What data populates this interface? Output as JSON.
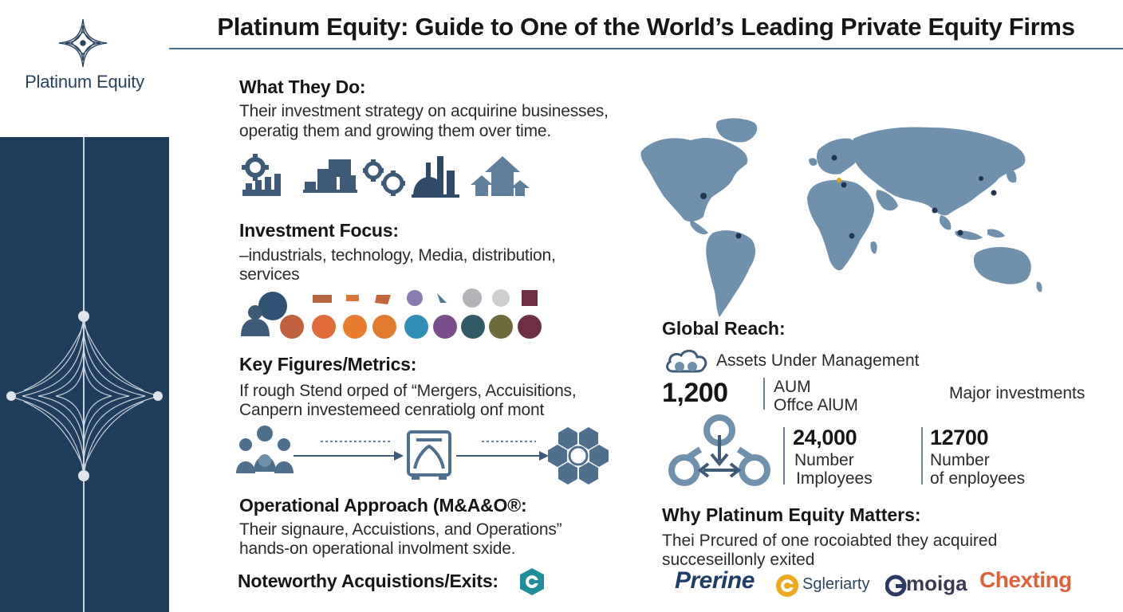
{
  "brand": {
    "name": "Platinum Equity"
  },
  "title": "Platinum Equity: Guide to One of the World’s Leading Private Equity Firms",
  "sections": {
    "what": {
      "heading": "What They Do:",
      "line1": "Their investment strategy on acquirine businesses,",
      "line2": "operatig them and growing them over time."
    },
    "focus": {
      "heading": "Investment Focus:",
      "line1": "–industrials, technology, Media, distribution,",
      "line2": "services"
    },
    "figures": {
      "heading": "Key Figures/Metrics:",
      "line1": "If rough Stend orped of “Mergers, Accuisitions,",
      "line2": "Canpern investemeed cenratiolg onf mont"
    },
    "operational": {
      "heading": "Operational Approach (M&A&O®:",
      "line1": "Their signaure,  Accuistions, and Operations”",
      "line2": "hands-on operational involment sxide."
    },
    "noteworthy": {
      "heading": "Noteworthy Acquistions/Exits:"
    }
  },
  "global": {
    "heading": "Global Reach:",
    "aum_label": "Assets Under Management",
    "aum_value": "1,200",
    "aum_unit": "AUM",
    "aum_sub": "Offce AlUM",
    "major": "Major investments",
    "stat1": {
      "value": "24,000",
      "line1": "Number",
      "line2": "Imployees"
    },
    "stat2": {
      "value": "12700",
      "line1": "Number",
      "line2": "of enployees"
    }
  },
  "why": {
    "heading": "Why Platinum Equity Matters:",
    "line1": "Thei Prcured of one rocoiabted they acquired",
    "line2": "succeseillonly exited"
  },
  "logos": {
    "l1": "Prerine",
    "l2": "Sgleriarty",
    "l3": "moiga",
    "l4": "Chexting"
  },
  "colors": {
    "navy": "#1f3d5c",
    "slate": "#3d5a78",
    "map": "#6f91ad",
    "focus_palette": [
      "#2f5372",
      "#c0623e",
      "#e06b3b",
      "#e87c2f",
      "#2f8fb5",
      "#7a4e8c",
      "#2f5a66",
      "#6d6b3a",
      "#6e2f45"
    ]
  }
}
